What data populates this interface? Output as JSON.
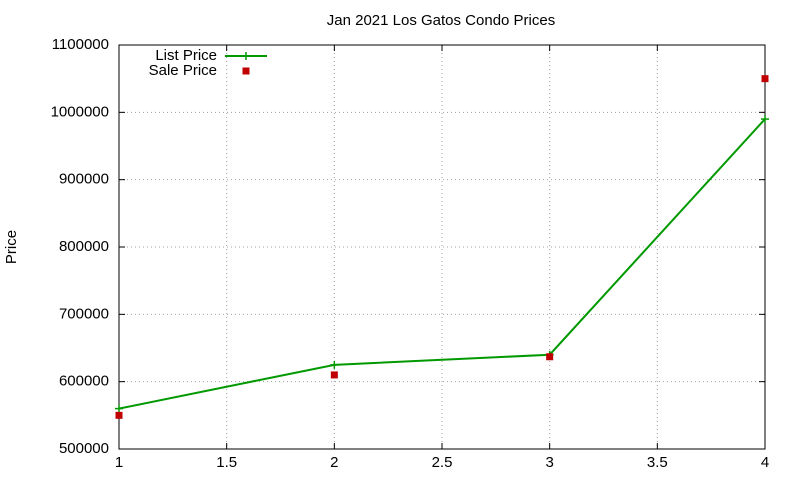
{
  "chart_data": {
    "type": "line",
    "title": "Jan 2021 Los Gatos Condo Prices",
    "y_label": "Price",
    "x": [
      1,
      2,
      3,
      4
    ],
    "series": [
      {
        "name": "List Price",
        "color": "#009900",
        "style": "linespoints",
        "values": [
          560000,
          625000,
          640000,
          990000
        ]
      },
      {
        "name": "Sale Price",
        "color": "#c00000",
        "style": "points",
        "values": [
          550000,
          610000,
          637000,
          1050000
        ]
      }
    ],
    "xlim": [
      1,
      4
    ],
    "xticks": [
      1,
      1.5,
      2,
      2.5,
      3,
      3.5,
      4
    ],
    "ylim": [
      500000,
      1100000
    ],
    "yticks": [
      500000,
      600000,
      700000,
      800000,
      900000,
      1000000,
      1100000
    ],
    "grid": true,
    "legend": "top-left"
  }
}
